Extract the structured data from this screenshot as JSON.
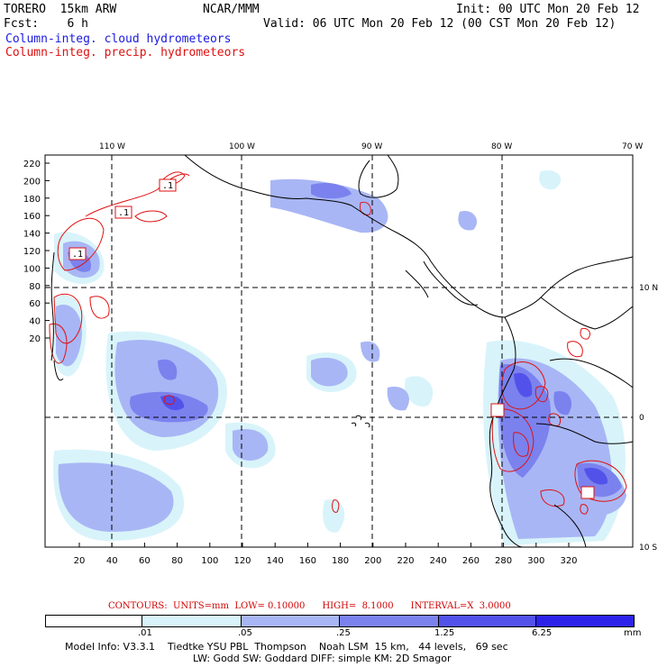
{
  "header": {
    "model": "TORERO  15km ARW",
    "center": "NCAR/MMM",
    "init": "Init: 00 UTC Mon 20 Feb 12",
    "fcst": "Fcst:    6 h",
    "valid": "Valid: 06 UTC Mon 20 Feb 12 (00 CST Mon 20 Feb 12)",
    "field1": "Column-integ. cloud hydrometeors",
    "field2": "Column-integ. precip. hydrometeors"
  },
  "map": {
    "top_lon_labels": [
      "110 W",
      "100 W",
      "90 W",
      "80 W",
      "70 W"
    ],
    "right_lat_labels": [
      "10 N",
      "0",
      "10 S"
    ],
    "left_grid_labels": [
      "220",
      "200",
      "180",
      "160",
      "140",
      "120",
      "100",
      "80",
      "60",
      "40",
      "20"
    ],
    "bottom_grid_labels": [
      "20",
      "40",
      "60",
      "80",
      "100",
      "120",
      "140",
      "160",
      "180",
      "200",
      "220",
      "240",
      "260",
      "280",
      "300",
      "320"
    ],
    "contour_labels": [
      ".1",
      ".1",
      ".1",
      "1"
    ]
  },
  "contours_info": "CONTOURS:  UNITS=mm  LOW= 0.10000      HIGH=  8.1000      INTERVAL=X  3.0000",
  "colorbar": {
    "colors": [
      "#ffffff",
      "#d8f4fa",
      "#a9b6f5",
      "#7b82ee",
      "#5252ea",
      "#2d22ea"
    ],
    "labels": [
      ".01",
      ".05",
      ".25",
      "1.25",
      "6.25"
    ],
    "units": "mm"
  },
  "footer": {
    "line1": "Model Info: V3.3.1    Tiedtke YSU PBL  Thompson    Noah LSM  15 km,   44 levels,   69 sec",
    "line2": "LW: Godd SW: Goddard DIFF: simple KM: 2D Smagor"
  }
}
